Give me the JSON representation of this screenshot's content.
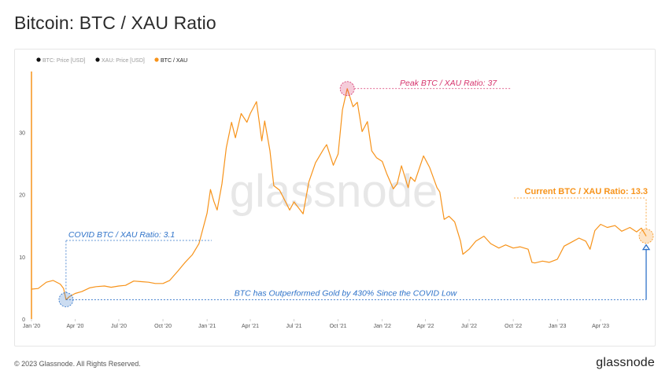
{
  "title": "Bitcoin: BTC / XAU Ratio",
  "footer": {
    "copyright": "© 2023 Glassnode. All Rights Reserved.",
    "brand": "glassnode"
  },
  "watermark": "glassnode",
  "colors": {
    "line": "#f7931a",
    "covid": "#2f73c9",
    "peak": "#d6336c",
    "current": "#f7931a",
    "axis": "#f7931a",
    "legend_inactive": "#9a9a9a"
  },
  "chart_data": {
    "type": "line",
    "legend": [
      {
        "label": "BTC: Price [USD]",
        "active": false,
        "color": "#111111"
      },
      {
        "label": "XAU: Price [USD]",
        "active": false,
        "color": "#111111"
      },
      {
        "label": "BTC / XAU",
        "active": true,
        "color": "#f7931a"
      }
    ],
    "x_ticks": [
      "Jan '20",
      "Apr '20",
      "Jul '20",
      "Oct '20",
      "Jan '21",
      "Apr '21",
      "Jul '21",
      "Oct '21",
      "Jan '22",
      "Apr '22",
      "Jul '22",
      "Oct '22",
      "Jan '23",
      "Apr '23"
    ],
    "y_ticks": [
      0,
      10,
      20,
      30
    ],
    "ylim": [
      0,
      40
    ],
    "xlim": [
      "2020-01-01",
      "2023-07-05"
    ],
    "series": [
      {
        "name": "BTC / XAU",
        "x": [
          "2020-01-01",
          "2020-01-15",
          "2020-02-01",
          "2020-02-15",
          "2020-03-01",
          "2020-03-08",
          "2020-03-13",
          "2020-03-20",
          "2020-04-01",
          "2020-04-15",
          "2020-05-01",
          "2020-05-15",
          "2020-06-01",
          "2020-06-15",
          "2020-07-01",
          "2020-07-15",
          "2020-08-01",
          "2020-08-15",
          "2020-09-01",
          "2020-09-15",
          "2020-10-01",
          "2020-10-15",
          "2020-11-01",
          "2020-11-15",
          "2020-12-01",
          "2020-12-15",
          "2021-01-01",
          "2021-01-08",
          "2021-01-15",
          "2021-01-22",
          "2021-02-01",
          "2021-02-10",
          "2021-02-21",
          "2021-03-01",
          "2021-03-13",
          "2021-03-25",
          "2021-04-01",
          "2021-04-14",
          "2021-04-25",
          "2021-05-01",
          "2021-05-12",
          "2021-05-20",
          "2021-06-01",
          "2021-06-15",
          "2021-06-22",
          "2021-07-01",
          "2021-07-20",
          "2021-08-01",
          "2021-08-15",
          "2021-09-01",
          "2021-09-07",
          "2021-09-21",
          "2021-10-01",
          "2021-10-10",
          "2021-10-20",
          "2021-11-01",
          "2021-11-10",
          "2021-11-20",
          "2021-12-01",
          "2021-12-10",
          "2021-12-20",
          "2022-01-01",
          "2022-01-10",
          "2022-01-24",
          "2022-02-01",
          "2022-02-10",
          "2022-02-24",
          "2022-03-01",
          "2022-03-10",
          "2022-03-28",
          "2022-04-10",
          "2022-04-25",
          "2022-05-01",
          "2022-05-10",
          "2022-05-20",
          "2022-06-01",
          "2022-06-13",
          "2022-06-18",
          "2022-07-01",
          "2022-07-15",
          "2022-08-01",
          "2022-08-15",
          "2022-09-01",
          "2022-09-15",
          "2022-10-01",
          "2022-10-15",
          "2022-11-01",
          "2022-11-09",
          "2022-11-15",
          "2022-12-01",
          "2022-12-15",
          "2023-01-01",
          "2023-01-15",
          "2023-02-01",
          "2023-02-15",
          "2023-03-01",
          "2023-03-10",
          "2023-03-20",
          "2023-04-01",
          "2023-04-15",
          "2023-05-01",
          "2023-05-15",
          "2023-06-01",
          "2023-06-15",
          "2023-06-25",
          "2023-07-05"
        ],
        "y": [
          4.8,
          4.9,
          5.9,
          6.2,
          5.6,
          4.9,
          3.1,
          3.6,
          4.1,
          4.4,
          5.0,
          5.2,
          5.3,
          5.1,
          5.3,
          5.4,
          6.1,
          6.0,
          5.9,
          5.7,
          5.7,
          6.2,
          7.7,
          9.0,
          10.3,
          12.1,
          17.0,
          20.8,
          18.9,
          17.5,
          21.7,
          27.5,
          31.6,
          29.1,
          33.0,
          31.6,
          33.0,
          34.9,
          28.6,
          31.8,
          27.0,
          21.4,
          20.7,
          18.6,
          17.5,
          18.8,
          16.9,
          22.0,
          25.1,
          27.3,
          28.0,
          24.7,
          26.5,
          33.6,
          37.0,
          34.1,
          34.8,
          30.1,
          31.7,
          27.0,
          25.9,
          25.3,
          23.4,
          20.9,
          21.7,
          24.6,
          21.1,
          22.8,
          22.1,
          26.2,
          24.3,
          21.1,
          20.4,
          16.0,
          16.5,
          15.6,
          12.5,
          10.4,
          11.2,
          12.5,
          13.3,
          12.1,
          11.4,
          11.9,
          11.4,
          11.6,
          11.2,
          9.1,
          9.0,
          9.3,
          9.1,
          9.6,
          11.7,
          12.4,
          13.0,
          12.5,
          11.2,
          14.2,
          15.2,
          14.7,
          15.0,
          14.1,
          14.7,
          14.0,
          14.6,
          13.3
        ]
      }
    ],
    "annotations": [
      {
        "id": "covid",
        "text": "COVID BTC / XAU Ratio: 3.1",
        "x": "2020-03-13",
        "y": 3.1,
        "color": "#2f73c9"
      },
      {
        "id": "peak",
        "text": "Peak BTC / XAU Ratio: 37",
        "x": "2021-10-20",
        "y": 37,
        "color": "#d6336c"
      },
      {
        "id": "current",
        "text": "Current BTC / XAU Ratio: 13.3",
        "x": "2023-07-05",
        "y": 13.3,
        "color": "#f7931a"
      },
      {
        "id": "outperform",
        "text": "BTC has Outperformed Gold by 430% Since the COVID Low",
        "color": "#2f73c9"
      }
    ],
    "grid": false,
    "legend_position": "top-left"
  }
}
